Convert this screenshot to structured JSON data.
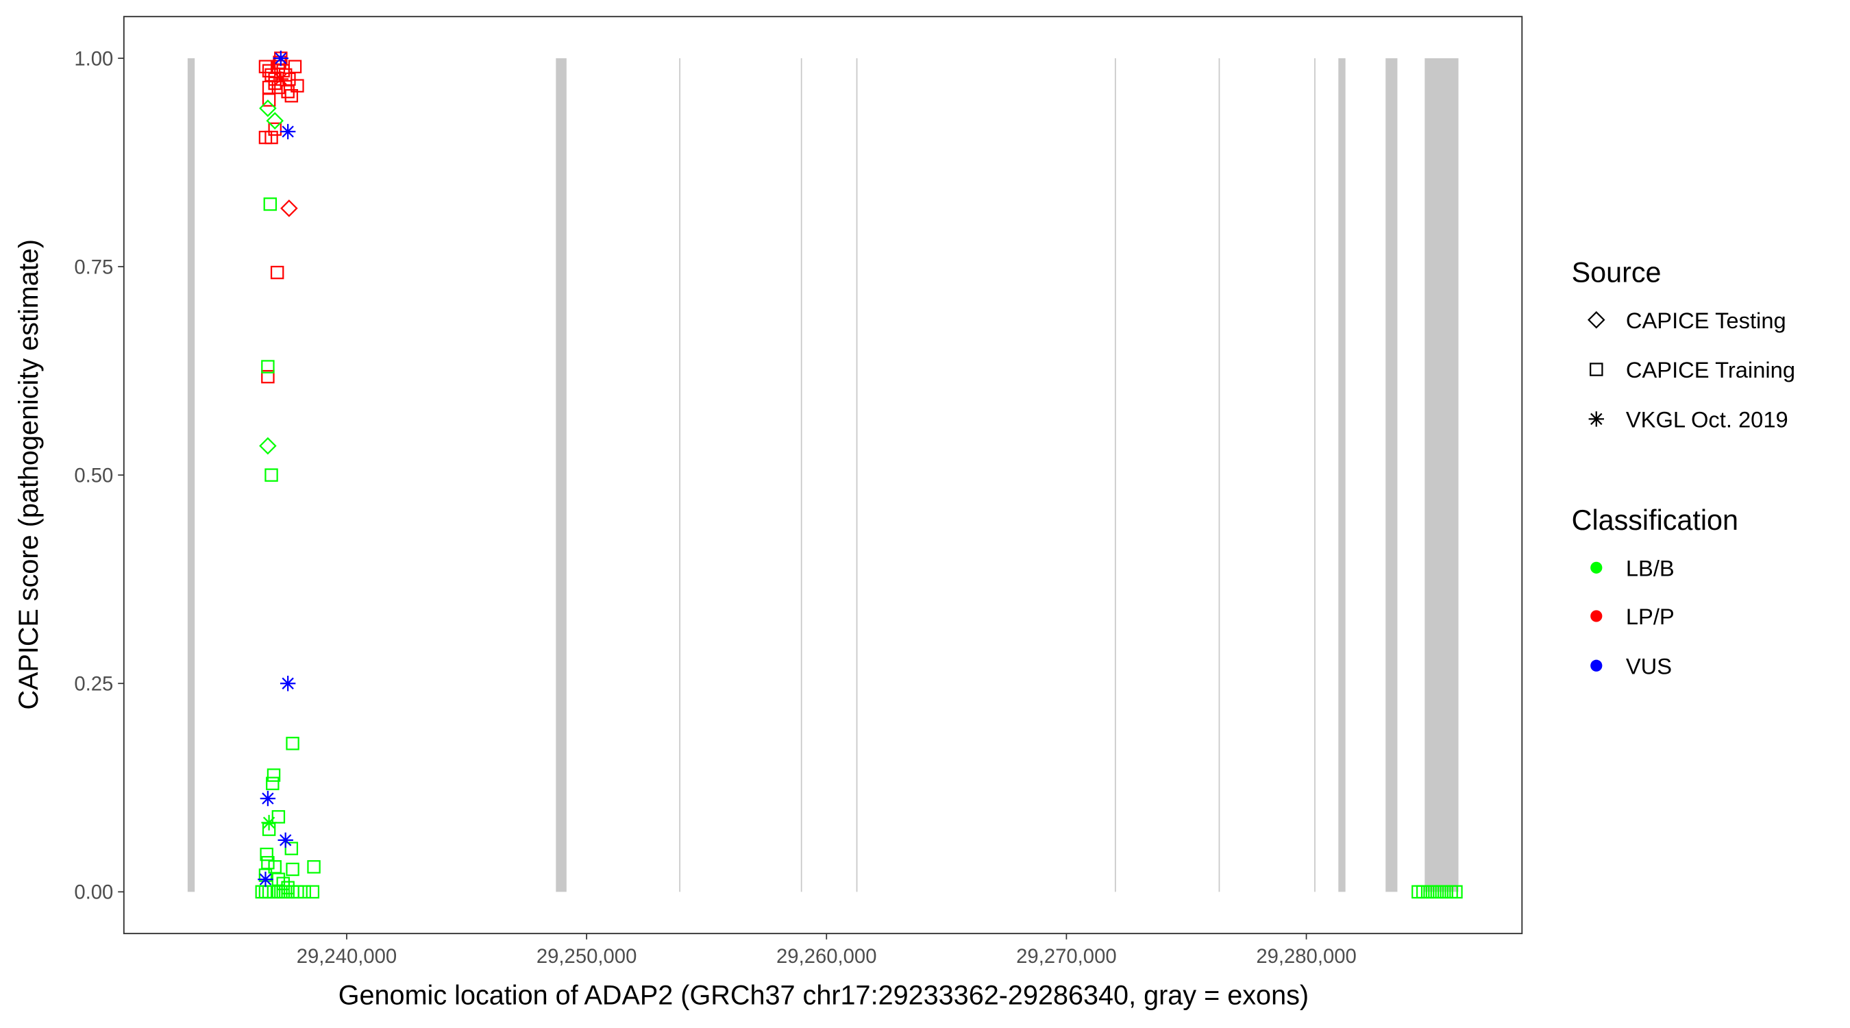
{
  "chart_data": {
    "type": "scatter",
    "title": "",
    "xlabel": "Genomic location of ADAP2 (GRCh37 chr17:29233362-29286340, gray = exons)",
    "ylabel": "CAPICE score (pathogenicity estimate)",
    "xlim": [
      29230713,
      29288989
    ],
    "ylim": [
      -0.05,
      1.05
    ],
    "xticks": [
      29240000,
      29250000,
      29260000,
      29270000,
      29280000
    ],
    "xtick_labels": [
      "29,240,000",
      "29,250,000",
      "29,260,000",
      "29,270,000",
      "29,280,000"
    ],
    "yticks": [
      0,
      0.25,
      0.5,
      0.75,
      1.0
    ],
    "ytick_labels": [
      "0.00",
      "0.25",
      "0.50",
      "0.75",
      "1.00"
    ],
    "grid": false,
    "exon_color": "#c8c8c8",
    "exons": [
      [
        29233370,
        29233665
      ],
      [
        29248720,
        29249163
      ],
      [
        29253860,
        29253900
      ],
      [
        29258930,
        29258970
      ],
      [
        29261240,
        29261280
      ],
      [
        29272015,
        29272055
      ],
      [
        29276345,
        29276385
      ],
      [
        29280330,
        29280370
      ],
      [
        29281335,
        29281630
      ],
      [
        29283303,
        29283795
      ],
      [
        29284934,
        29286340
      ]
    ],
    "legend": {
      "placement": "right",
      "shape_title": "Source",
      "shapes": [
        {
          "label": "CAPICE Testing",
          "shape": "diamond"
        },
        {
          "label": "CAPICE Training",
          "shape": "square"
        },
        {
          "label": "VKGL Oct. 2019",
          "shape": "asterisk"
        }
      ],
      "color_title": "Classification",
      "colors": [
        {
          "label": "LB/B",
          "color": "#00ff00"
        },
        {
          "label": "LP/P",
          "color": "#ff0000"
        },
        {
          "label": "VUS",
          "color": "#0000ff"
        }
      ]
    },
    "points": [
      {
        "x": 29236615,
        "y": 0.99,
        "source": "CAPICE Training",
        "class": "LP/P"
      },
      {
        "x": 29236762,
        "y": 0.985,
        "source": "CAPICE Training",
        "class": "LP/P"
      },
      {
        "x": 29236860,
        "y": 0.98,
        "source": "CAPICE Training",
        "class": "LP/P"
      },
      {
        "x": 29237008,
        "y": 0.975,
        "source": "CAPICE Training",
        "class": "LP/P"
      },
      {
        "x": 29237155,
        "y": 0.99,
        "source": "CAPICE Training",
        "class": "LP/P"
      },
      {
        "x": 29237352,
        "y": 0.985,
        "source": "CAPICE Training",
        "class": "LP/P"
      },
      {
        "x": 29237844,
        "y": 0.99,
        "source": "CAPICE Training",
        "class": "LP/P"
      },
      {
        "x": 29237942,
        "y": 0.967,
        "source": "CAPICE Training",
        "class": "LP/P"
      },
      {
        "x": 29237696,
        "y": 0.955,
        "source": "CAPICE Training",
        "class": "LP/P"
      },
      {
        "x": 29236762,
        "y": 0.95,
        "source": "CAPICE Training",
        "class": "LP/P"
      },
      {
        "x": 29237598,
        "y": 0.975,
        "source": "CAPICE Training",
        "class": "LP/P"
      },
      {
        "x": 29237008,
        "y": 0.97,
        "source": "CAPICE Training",
        "class": "LP/P"
      },
      {
        "x": 29237155,
        "y": 0.965,
        "source": "CAPICE Training",
        "class": "LP/P"
      },
      {
        "x": 29237450,
        "y": 0.98,
        "source": "CAPICE Training",
        "class": "LP/P"
      },
      {
        "x": 29236762,
        "y": 0.965,
        "source": "CAPICE Training",
        "class": "LP/P"
      },
      {
        "x": 29237204,
        "y": 0.995,
        "source": "CAPICE Training",
        "class": "LP/P"
      },
      {
        "x": 29237254,
        "y": 1.0,
        "source": "CAPICE Training",
        "class": "LP/P"
      },
      {
        "x": 29237549,
        "y": 0.96,
        "source": "CAPICE Training",
        "class": "LP/P"
      },
      {
        "x": 29236860,
        "y": 0.905,
        "source": "CAPICE Training",
        "class": "LP/P"
      },
      {
        "x": 29236615,
        "y": 0.905,
        "source": "CAPICE Training",
        "class": "LP/P"
      },
      {
        "x": 29237008,
        "y": 0.915,
        "source": "CAPICE Training",
        "class": "LP/P"
      },
      {
        "x": 29237106,
        "y": 0.743,
        "source": "CAPICE Training",
        "class": "LP/P"
      },
      {
        "x": 29236713,
        "y": 0.618,
        "source": "CAPICE Training",
        "class": "LP/P"
      },
      {
        "x": 29237254,
        "y": 0.975,
        "source": "VKGL Oct. 2019",
        "class": "LP/P"
      },
      {
        "x": 29237598,
        "y": 0.82,
        "source": "CAPICE Testing",
        "class": "LP/P"
      },
      {
        "x": 29236713,
        "y": 0.94,
        "source": "CAPICE Testing",
        "class": "LB/B"
      },
      {
        "x": 29237008,
        "y": 0.925,
        "source": "CAPICE Testing",
        "class": "LB/B"
      },
      {
        "x": 29236713,
        "y": 0.535,
        "source": "CAPICE Testing",
        "class": "LB/B"
      },
      {
        "x": 29236811,
        "y": 0.825,
        "source": "CAPICE Training",
        "class": "LB/B"
      },
      {
        "x": 29236713,
        "y": 0.63,
        "source": "CAPICE Training",
        "class": "LB/B"
      },
      {
        "x": 29236860,
        "y": 0.5,
        "source": "CAPICE Training",
        "class": "LB/B"
      },
      {
        "x": 29237746,
        "y": 0.178,
        "source": "CAPICE Training",
        "class": "LB/B"
      },
      {
        "x": 29236959,
        "y": 0.14,
        "source": "CAPICE Training",
        "class": "LB/B"
      },
      {
        "x": 29236910,
        "y": 0.13,
        "source": "CAPICE Training",
        "class": "LB/B"
      },
      {
        "x": 29237155,
        "y": 0.09,
        "source": "CAPICE Training",
        "class": "LB/B"
      },
      {
        "x": 29236762,
        "y": 0.075,
        "source": "CAPICE Training",
        "class": "LB/B"
      },
      {
        "x": 29237696,
        "y": 0.052,
        "source": "CAPICE Training",
        "class": "LB/B"
      },
      {
        "x": 29236664,
        "y": 0.045,
        "source": "CAPICE Training",
        "class": "LB/B"
      },
      {
        "x": 29236713,
        "y": 0.035,
        "source": "CAPICE Training",
        "class": "LB/B"
      },
      {
        "x": 29237008,
        "y": 0.03,
        "source": "CAPICE Training",
        "class": "LB/B"
      },
      {
        "x": 29237746,
        "y": 0.027,
        "source": "CAPICE Training",
        "class": "LB/B"
      },
      {
        "x": 29238631,
        "y": 0.03,
        "source": "CAPICE Training",
        "class": "LB/B"
      },
      {
        "x": 29236615,
        "y": 0.02,
        "source": "CAPICE Training",
        "class": "LB/B"
      },
      {
        "x": 29237155,
        "y": 0.015,
        "source": "CAPICE Training",
        "class": "LB/B"
      },
      {
        "x": 29237352,
        "y": 0.01,
        "source": "CAPICE Training",
        "class": "LB/B"
      },
      {
        "x": 29237549,
        "y": 0.005,
        "source": "CAPICE Training",
        "class": "LB/B"
      },
      {
        "x": 29236467,
        "y": 0.0,
        "source": "CAPICE Training",
        "class": "LB/B"
      },
      {
        "x": 29236615,
        "y": 0.0,
        "source": "CAPICE Training",
        "class": "LB/B"
      },
      {
        "x": 29236762,
        "y": 0.0,
        "source": "CAPICE Training",
        "class": "LB/B"
      },
      {
        "x": 29236959,
        "y": 0.0,
        "source": "CAPICE Training",
        "class": "LB/B"
      },
      {
        "x": 29237155,
        "y": 0.0,
        "source": "CAPICE Training",
        "class": "LB/B"
      },
      {
        "x": 29237352,
        "y": 0.0,
        "source": "CAPICE Training",
        "class": "LB/B"
      },
      {
        "x": 29237549,
        "y": 0.0,
        "source": "CAPICE Training",
        "class": "LB/B"
      },
      {
        "x": 29237746,
        "y": 0.0,
        "source": "CAPICE Training",
        "class": "LB/B"
      },
      {
        "x": 29237942,
        "y": 0.0,
        "source": "CAPICE Training",
        "class": "LB/B"
      },
      {
        "x": 29238238,
        "y": 0.0,
        "source": "CAPICE Training",
        "class": "LB/B"
      },
      {
        "x": 29238582,
        "y": 0.0,
        "source": "CAPICE Training",
        "class": "LB/B"
      },
      {
        "x": 29236762,
        "y": 0.083,
        "source": "VKGL Oct. 2019",
        "class": "LB/B"
      },
      {
        "x": 29284663,
        "y": 0.0,
        "source": "CAPICE Training",
        "class": "LB/B"
      },
      {
        "x": 29284860,
        "y": 0.0,
        "source": "CAPICE Training",
        "class": "LB/B"
      },
      {
        "x": 29285057,
        "y": 0.0,
        "source": "CAPICE Training",
        "class": "LB/B"
      },
      {
        "x": 29285253,
        "y": 0.0,
        "source": "CAPICE Training",
        "class": "LB/B"
      },
      {
        "x": 29285450,
        "y": 0.0,
        "source": "CAPICE Training",
        "class": "LB/B"
      },
      {
        "x": 29285647,
        "y": 0.0,
        "source": "CAPICE Training",
        "class": "LB/B"
      },
      {
        "x": 29285844,
        "y": 0.0,
        "source": "CAPICE Training",
        "class": "LB/B"
      },
      {
        "x": 29286041,
        "y": 0.0,
        "source": "CAPICE Training",
        "class": "LB/B"
      },
      {
        "x": 29286237,
        "y": 0.0,
        "source": "CAPICE Training",
        "class": "LB/B"
      },
      {
        "x": 29237254,
        "y": 1.0,
        "source": "VKGL Oct. 2019",
        "class": "VUS"
      },
      {
        "x": 29237549,
        "y": 0.912,
        "source": "VKGL Oct. 2019",
        "class": "VUS"
      },
      {
        "x": 29237549,
        "y": 0.25,
        "source": "VKGL Oct. 2019",
        "class": "VUS"
      },
      {
        "x": 29236713,
        "y": 0.112,
        "source": "VKGL Oct. 2019",
        "class": "VUS"
      },
      {
        "x": 29237450,
        "y": 0.062,
        "source": "VKGL Oct. 2019",
        "class": "VUS"
      },
      {
        "x": 29236615,
        "y": 0.015,
        "source": "VKGL Oct. 2019",
        "class": "VUS"
      }
    ]
  }
}
